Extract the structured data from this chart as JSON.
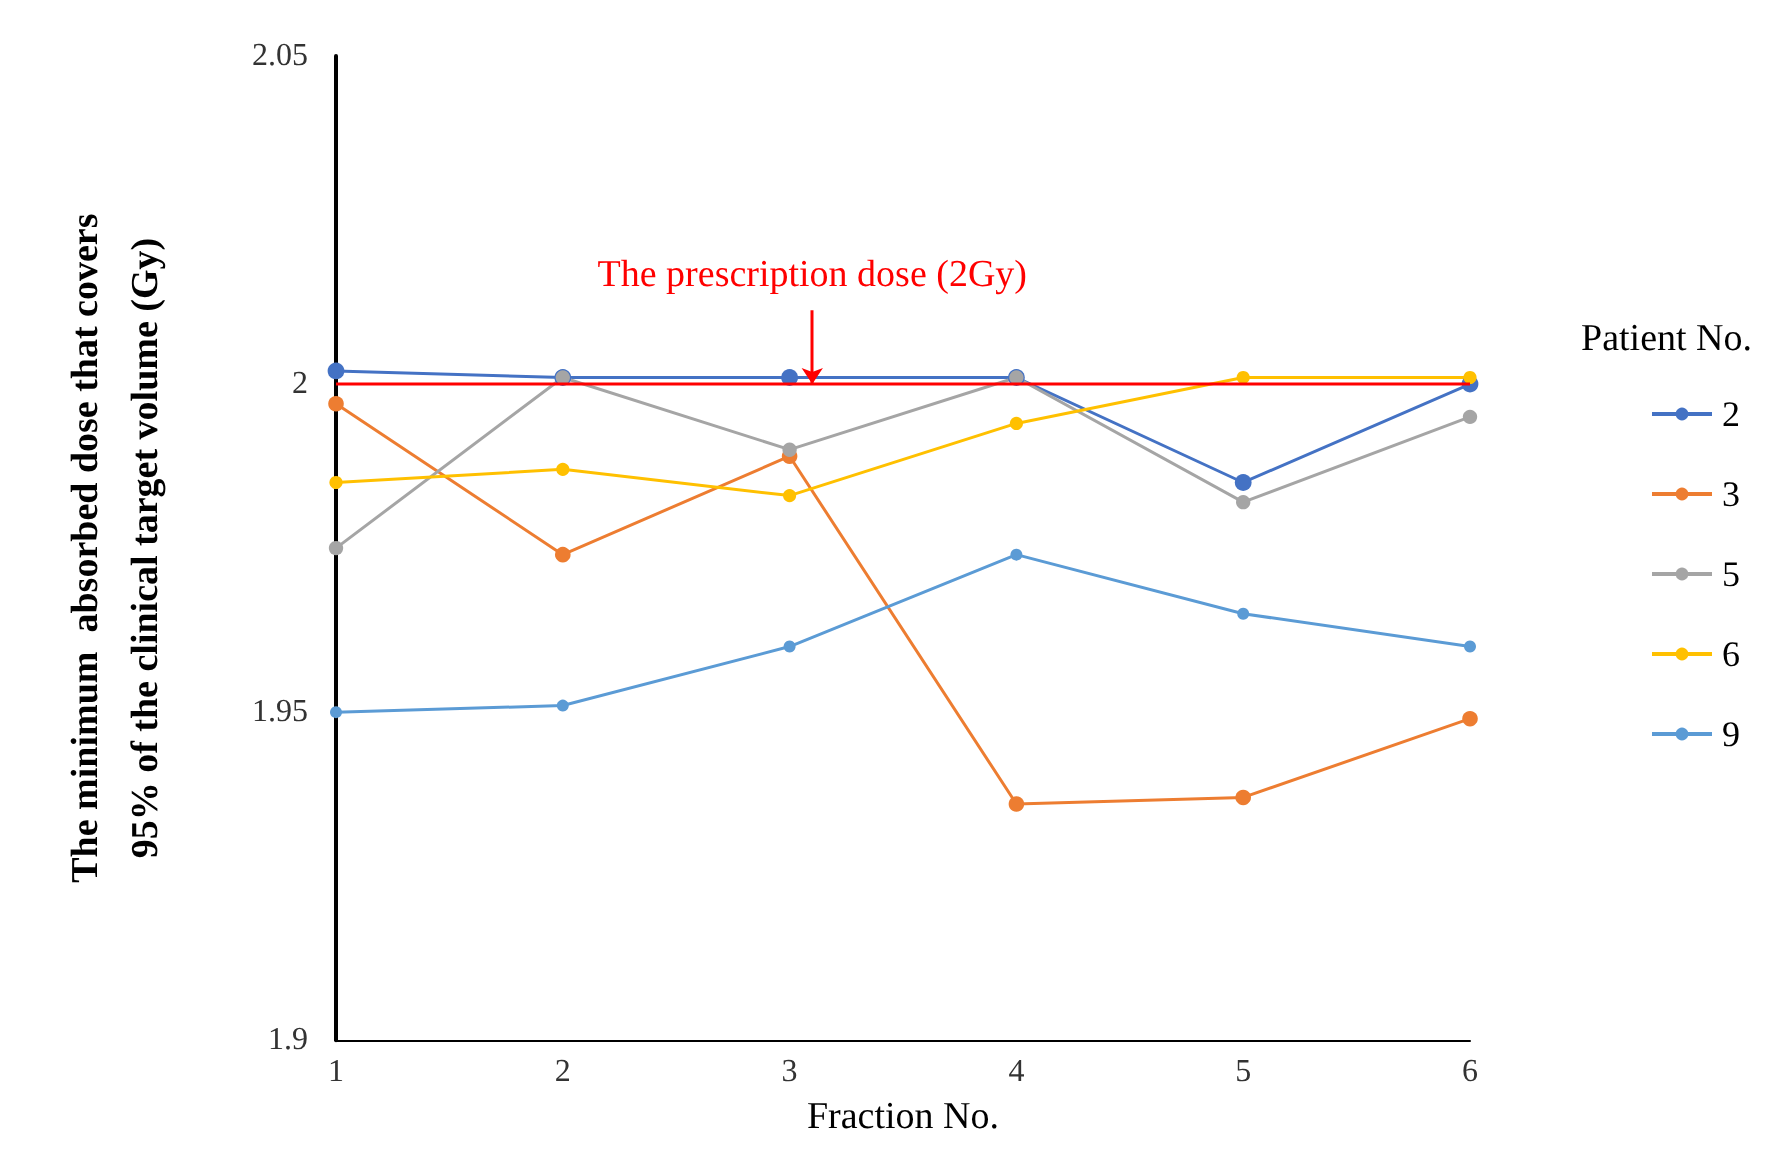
{
  "chart_data": {
    "type": "line",
    "xlabel": "Fraction No.",
    "ylabel": "The minimum  absorbed dose that covers\n95% of the clinical target volume (Gy)",
    "legend_title": "Patient No.",
    "x": [
      1,
      2,
      3,
      4,
      5,
      6
    ],
    "xlim": [
      1,
      6
    ],
    "xticks": [
      1,
      2,
      3,
      4,
      5,
      6
    ],
    "ylim": [
      1.9,
      2.05
    ],
    "yticks": [
      1.9,
      1.95,
      2,
      2.05
    ],
    "grid": false,
    "legend": "right",
    "marker": "circle",
    "line_style": "solid",
    "series": [
      {
        "name": "2",
        "color": "#4472c4",
        "values": [
          2.002,
          2.001,
          2.001,
          2.001,
          1.985,
          2.0
        ]
      },
      {
        "name": "3",
        "color": "#ed7d31",
        "values": [
          1.997,
          1.974,
          1.989,
          1.936,
          1.937,
          1.949
        ]
      },
      {
        "name": "5",
        "color": "#a5a5a5",
        "values": [
          1.975,
          2.001,
          1.99,
          2.001,
          1.982,
          1.995
        ]
      },
      {
        "name": "6",
        "color": "#ffc000",
        "values": [
          1.985,
          1.987,
          1.983,
          1.994,
          2.001,
          2.001
        ]
      },
      {
        "name": "9",
        "color": "#5b9bd5",
        "values": [
          1.95,
          1.951,
          1.96,
          1.974,
          1.965,
          1.96
        ]
      }
    ],
    "ref_lines": [
      {
        "axis": "y",
        "value": 2,
        "color": "#ff0000"
      }
    ],
    "annotations": [
      {
        "text": "The prescription dose (2Gy)",
        "x": 3.1,
        "y": 2
      }
    ]
  }
}
